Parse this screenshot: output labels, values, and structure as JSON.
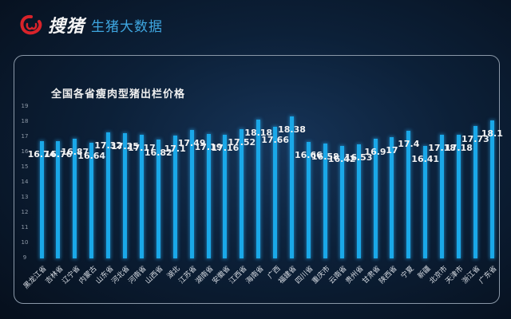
{
  "brand": {
    "logo_icon": "pig-logo-icon",
    "name": "搜猪",
    "subtitle": "生猪大数据"
  },
  "chart_data": {
    "type": "bar",
    "title": "全国各省瘦肉型猪出栏价格",
    "xlabel": "",
    "ylabel": "",
    "ylim": [
      9,
      19
    ],
    "yticks": [
      9,
      10,
      11,
      12,
      13,
      14,
      15,
      16,
      17,
      18,
      19
    ],
    "grid": false,
    "legend": null,
    "bar_color": "#1aa8e8",
    "categories": [
      "黑龙江省",
      "吉林省",
      "辽宁省",
      "内蒙古",
      "山东省",
      "河北省",
      "河南省",
      "山西省",
      "湖北",
      "江苏省",
      "湖南省",
      "安徽省",
      "江西省",
      "海南省",
      "广西",
      "福建省",
      "四川省",
      "重庆市",
      "云南省",
      "贵州省",
      "甘肃省",
      "陕西省",
      "宁夏",
      "新疆",
      "北京市",
      "天津市",
      "浙江省",
      "广东省"
    ],
    "values": [
      16.74,
      16.76,
      16.87,
      16.64,
      17.32,
      17.25,
      17.17,
      16.82,
      17.1,
      17.49,
      17.19,
      17.16,
      17.52,
      18.18,
      17.66,
      18.38,
      16.66,
      16.58,
      16.42,
      16.53,
      16.9,
      17,
      17.4,
      16.41,
      17.18,
      17.18,
      17.73,
      18.1
    ],
    "labels": [
      "16.74",
      "16.76",
      "16.87",
      "16.64",
      "17.32",
      "17.25",
      "17.17",
      "16.82",
      "17.1",
      "17.49",
      "17.19",
      "17.16",
      "17.52",
      "18.18",
      "17.66",
      "18.38",
      "16.66",
      "16.58",
      "16.42",
      "16.53",
      "16.9",
      "17",
      "17.4",
      "16.41",
      "17.18",
      "17.18",
      "17.73",
      "18.1"
    ]
  }
}
